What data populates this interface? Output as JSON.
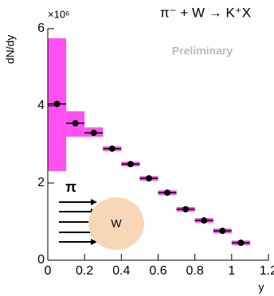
{
  "chart_data": {
    "type": "scatter",
    "title": "π⁻ + W → K⁺X",
    "annotation": "Preliminary",
    "y_multiplier": "×10⁶",
    "ylabel": "dN/dy",
    "xlabel": "y",
    "beam_label": "π",
    "target_label": "W",
    "x": [
      0.05,
      0.15,
      0.25,
      0.35,
      0.45,
      0.55,
      0.65,
      0.75,
      0.85,
      0.95,
      1.05
    ],
    "xerr": 0.05,
    "series": [
      {
        "name": "dN/dy",
        "color": "#000000",
        "values": [
          4.05,
          3.55,
          3.3,
          2.89,
          2.49,
          2.12,
          1.75,
          1.32,
          1.03,
          0.76,
          0.45
        ],
        "band_low": [
          2.31,
          3.2,
          3.2,
          2.83,
          2.43,
          2.06,
          1.69,
          1.26,
          0.97,
          0.7,
          0.39
        ],
        "band_high": [
          5.75,
          3.86,
          3.44,
          2.95,
          2.55,
          2.18,
          1.81,
          1.38,
          1.09,
          0.82,
          0.51
        ],
        "band_color": "#ff33ee"
      }
    ],
    "xlim": [
      0,
      1.2
    ],
    "ylim": [
      0,
      6
    ],
    "xticks": [
      0,
      0.2,
      0.4,
      0.6,
      0.8,
      1,
      1.2
    ],
    "yticks": [
      0,
      2,
      4,
      6
    ]
  }
}
